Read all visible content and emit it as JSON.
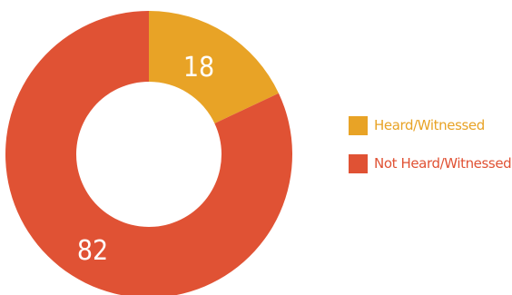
{
  "chart_data": {
    "type": "pie",
    "donut": true,
    "categories": [
      "Heard/Witnessed",
      "Not Heard/Witnessed"
    ],
    "values": [
      18,
      82
    ],
    "data_labels": [
      "18",
      "82"
    ],
    "colors": [
      "#E8A326",
      "#E05234"
    ],
    "legend": {
      "placement": "right",
      "entries": [
        "Heard/Witnessed",
        "Not Heard/Witnessed"
      ]
    }
  }
}
